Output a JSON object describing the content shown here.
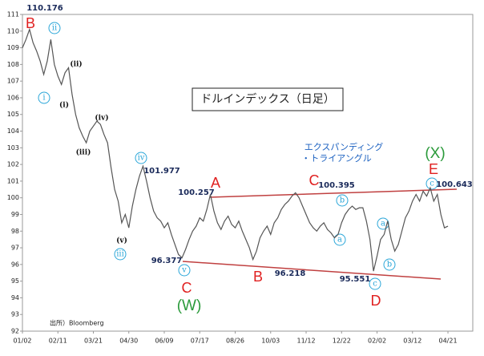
{
  "chart_data": {
    "type": "line",
    "title": "ドルインデックス（日足）",
    "source": "出所）Bloomberg",
    "series": [
      {
        "name": "ドルインデックス",
        "color": "#555555",
        "values": [
          109.0,
          109.5,
          110.1,
          109.3,
          108.8,
          108.2,
          107.4,
          108.2,
          109.5,
          108.0,
          107.3,
          106.8,
          107.5,
          107.8,
          106.2,
          105.0,
          104.2,
          103.7,
          103.3,
          104.0,
          104.3,
          104.6,
          104.4,
          103.8,
          103.3,
          101.8,
          100.5,
          99.8,
          98.5,
          99.0,
          98.2,
          99.5,
          100.5,
          101.3,
          101.9,
          101.0,
          100.0,
          99.2,
          98.8,
          98.6,
          98.2,
          98.5,
          97.8,
          97.2,
          96.6,
          96.4,
          96.9,
          97.5,
          98.0,
          98.3,
          98.8,
          98.6,
          99.3,
          100.2,
          99.2,
          98.5,
          98.1,
          98.6,
          98.9,
          98.4,
          98.2,
          98.6,
          98.0,
          97.5,
          97.0,
          96.3,
          96.8,
          97.6,
          98.0,
          98.3,
          97.8,
          98.5,
          98.8,
          99.3,
          99.6,
          99.8,
          100.1,
          100.3,
          100.0,
          99.5,
          99.0,
          98.5,
          98.2,
          98.0,
          98.3,
          98.5,
          98.1,
          97.9,
          97.6,
          97.8,
          98.5,
          99.0,
          99.3,
          99.5,
          99.3,
          99.4,
          99.4,
          98.6,
          97.5,
          95.6,
          96.5,
          97.5,
          97.8,
          98.6,
          97.5,
          96.8,
          97.2,
          98.0,
          98.8,
          99.2,
          99.8,
          100.2,
          99.8,
          100.4,
          100.1,
          100.6,
          99.8,
          100.2,
          99.0,
          98.2,
          98.3
        ]
      }
    ],
    "xlim": [
      0,
      127
    ],
    "xticks": [
      {
        "value": 0,
        "label": "01/02"
      },
      {
        "value": 10,
        "label": "02/11"
      },
      {
        "value": 20,
        "label": "03/21"
      },
      {
        "value": 30,
        "label": "04/30"
      },
      {
        "value": 40,
        "label": "06/09"
      },
      {
        "value": 50,
        "label": "07/17"
      },
      {
        "value": 60,
        "label": "08/26"
      },
      {
        "value": 70,
        "label": "10/03"
      },
      {
        "value": 80,
        "label": "11/12"
      },
      {
        "value": 90,
        "label": "12/22"
      },
      {
        "value": 100,
        "label": "02/02"
      },
      {
        "value": 110,
        "label": "03/12"
      },
      {
        "value": 120,
        "label": "04/21"
      }
    ],
    "ylim": [
      92,
      111
    ],
    "yticks": [
      92,
      93,
      94,
      95,
      96,
      97,
      98,
      99,
      100,
      101,
      102,
      103,
      104,
      105,
      106,
      107,
      108,
      109,
      110,
      111
    ],
    "annotations": [
      "B",
      "110.176",
      "ii",
      "i",
      "(ii)",
      "(i)",
      "(iii)",
      "(iv)",
      "iv",
      "101.977",
      "(v)",
      "iii",
      "v",
      "96.377",
      "C",
      "(W)",
      "A",
      "100.257",
      "B",
      "96.218",
      "C",
      "100.395",
      "b",
      "a",
      "95.551",
      "c",
      "D",
      "a",
      "b",
      "(X)",
      "E",
      "c",
      "100.643",
      "エクスパンディング",
      "・トライアングル"
    ]
  }
}
